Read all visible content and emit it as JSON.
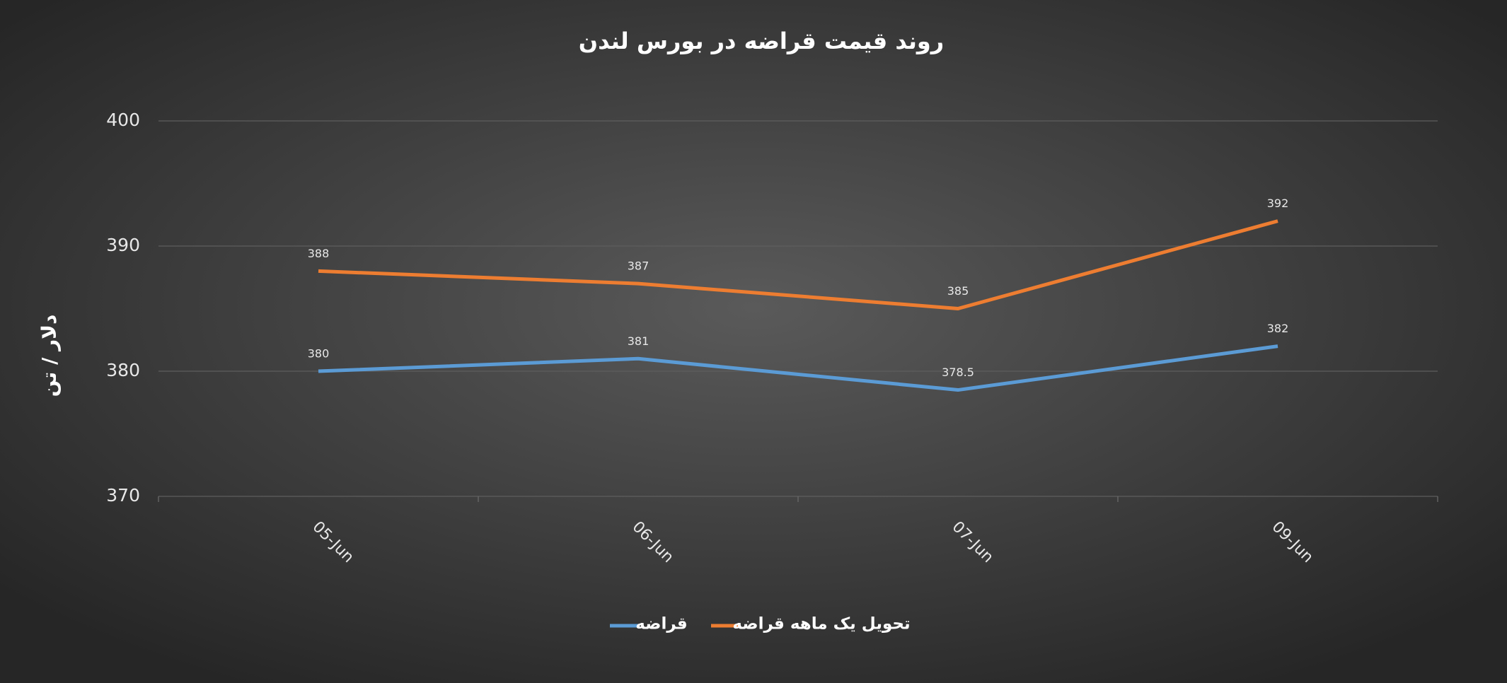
{
  "chart_data": {
    "type": "line",
    "title": "روند قیمت قراضه در بورس لندن",
    "y_label": "دلار / تن",
    "categories": [
      "05-Jun",
      "06-Jun",
      "07-Jun",
      "09-Jun"
    ],
    "series": [
      {
        "name": "قراضه",
        "color": "#5b9bd5",
        "values": [
          380,
          381,
          378.5,
          382
        ]
      },
      {
        "name": "تحویل یک ماهه قراضه",
        "color": "#ed7d31",
        "values": [
          388,
          387,
          385,
          392
        ]
      }
    ],
    "ylim": [
      370,
      400
    ],
    "yticks": [
      370,
      380,
      390,
      400
    ],
    "grid": true
  }
}
